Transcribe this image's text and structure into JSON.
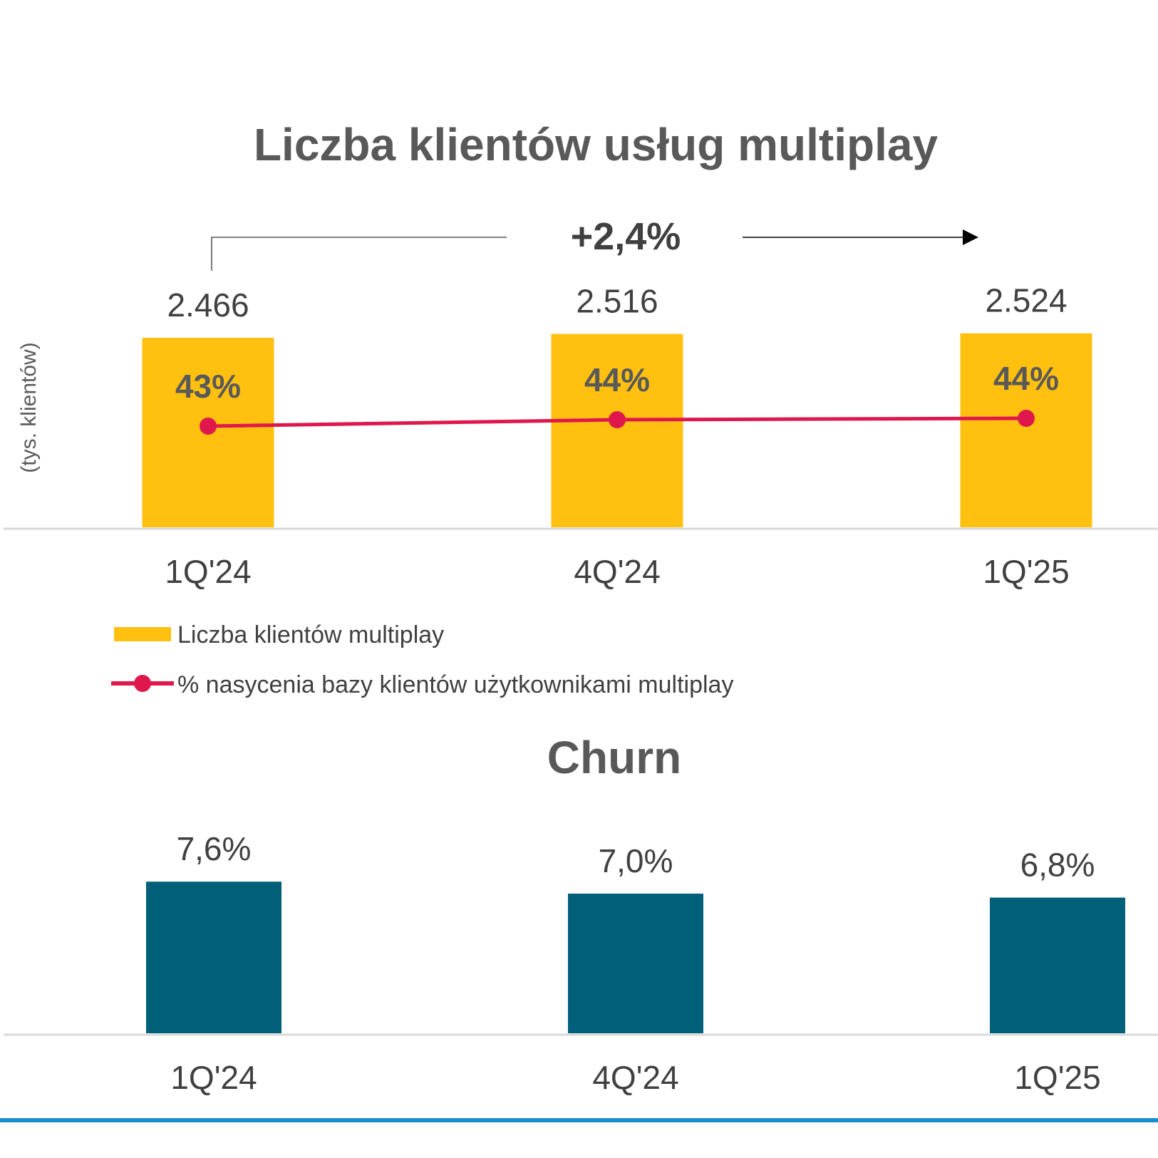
{
  "chart_data": [
    {
      "type": "bar",
      "title": "Liczba klientów usług multiplay",
      "ylabel": "(tys. klientów)",
      "categories": [
        "1Q'24",
        "4Q'24",
        "1Q'25"
      ],
      "series": [
        {
          "name": "Liczba klientów multiplay",
          "type": "bar",
          "values": [
            2466,
            2516,
            2524
          ],
          "labels": [
            "2.466",
            "2.516",
            "2.524"
          ],
          "color": "#FFC010"
        },
        {
          "name": "% nasycenia bazy klientów użytkownikami multiplay",
          "type": "line",
          "values": [
            43,
            44,
            44
          ],
          "labels": [
            "43%",
            "44%",
            "44%"
          ],
          "color": "#E0174D"
        }
      ],
      "annotation": "+2,4%",
      "legend": "bottom-left"
    },
    {
      "type": "bar",
      "title": "Churn",
      "categories": [
        "1Q'24",
        "4Q'24",
        "1Q'25"
      ],
      "series": [
        {
          "type": "bar",
          "values": [
            7.6,
            7.0,
            6.8
          ],
          "labels": [
            "7,6%",
            "7,0%",
            "6,8%"
          ],
          "color": "#00607A"
        }
      ]
    }
  ],
  "footer_rule_color": "#1A8FD0"
}
